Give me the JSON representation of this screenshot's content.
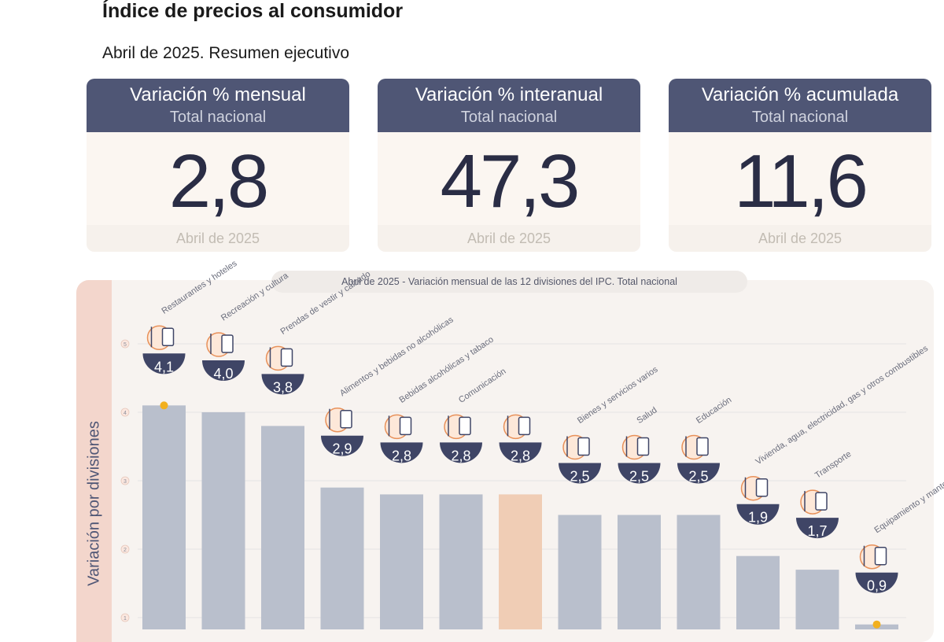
{
  "header": {
    "title": "Índice de precios al consumidor",
    "subtitle": "Abril de 2025. Resumen ejecutivo"
  },
  "cards": [
    {
      "title": "Variación % mensual",
      "sub": "Total nacional",
      "value": "2,8",
      "date": "Abril de 2025"
    },
    {
      "title": "Variación % interanual",
      "sub": "Total nacional",
      "value": "47,3",
      "date": "Abril de 2025"
    },
    {
      "title": "Variación % acumulada",
      "sub": "Total nacional",
      "value": "11,6",
      "date": "Abril de 2025"
    }
  ],
  "colors": {
    "header_bg": "#4f5675",
    "bar": "#b9bfcc",
    "bar_highlight": "#f0cdb5",
    "badge": "#3f4566",
    "accent": "#e8915a",
    "axis_band": "#f3d6cc",
    "marker": "#f2b01e"
  },
  "chart_data": {
    "type": "bar",
    "title": "Abril de 2025 - Variación mensual de las 12 divisiones del IPC. Total nacional",
    "ylabel": "Variación por divisiones",
    "ylim": [
      0.5,
      5.5
    ],
    "yticks": [
      1,
      2,
      3,
      4,
      5
    ],
    "grid": true,
    "categories": [
      "Restaurantes y hoteles",
      "Recreación y cultura",
      "Prendas de vestir y calzado",
      "Alimentos y bebidas no alcohólicas",
      "Bebidas alcohólicas y tabaco",
      "Comunicación",
      "",
      "Bienes y servicios varios",
      "Salud",
      "Educación",
      "Vivienda, agua, electricidad, gas y otros combustibles",
      "Transporte",
      "Equipamiento y mantenimiento del hogar"
    ],
    "values": [
      4.1,
      4.0,
      3.8,
      2.9,
      2.8,
      2.8,
      2.8,
      2.5,
      2.5,
      2.5,
      1.9,
      1.7,
      0.9
    ],
    "labels": [
      "4,1",
      "4,0",
      "3,8",
      "2,9",
      "2,8",
      "2,8",
      "2,8",
      "2,5",
      "2,5",
      "2,5",
      "1,9",
      "1,7",
      "0,9"
    ],
    "highlight_index": 6,
    "icons": [
      "utensils-icon",
      "sun-umbrella-icon",
      "tshirt-icon",
      "bread-icon",
      "bottles-icon",
      "phone-icon",
      "basket-icon",
      "scissors-icon",
      "medical-kit-icon",
      "book-icon",
      "bulb-icon",
      "car-icon",
      "air-conditioner-icon"
    ]
  }
}
